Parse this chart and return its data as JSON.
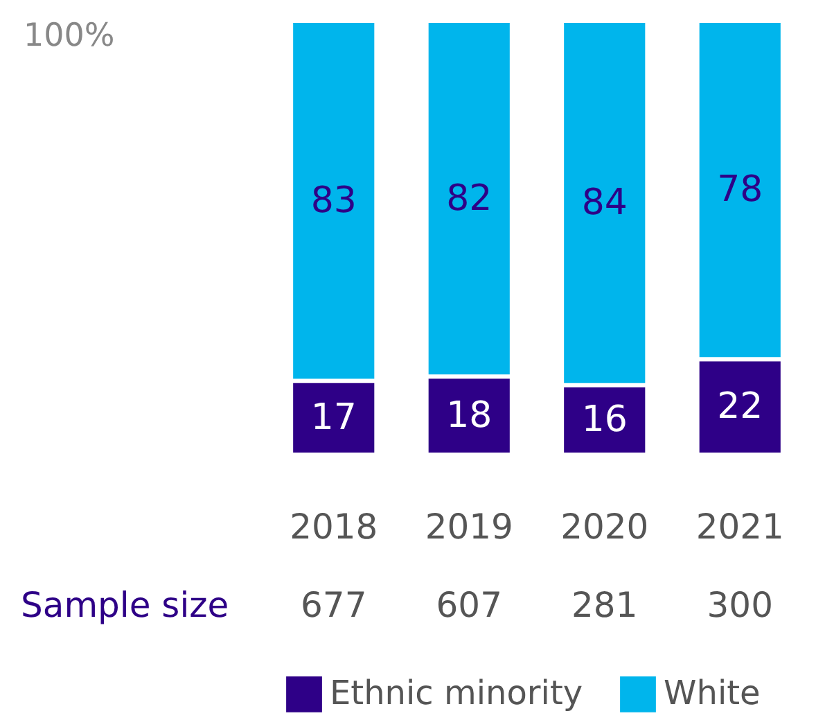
{
  "chart_data": {
    "type": "bar",
    "stacked": true,
    "data_labels": true,
    "legend": "bottom",
    "categories": [
      "2018",
      "2019",
      "2020",
      "2021"
    ],
    "series": [
      {
        "name": "Ethnic minority",
        "color": "#2e0087",
        "values": [
          17,
          18,
          16,
          22
        ]
      },
      {
        "name": "White",
        "color": "#00b5ec",
        "values": [
          83,
          82,
          84,
          78
        ]
      }
    ],
    "ylim": [
      0,
      100
    ],
    "annotations": [
      "100%",
      "Sample size",
      "677",
      "607",
      "281",
      "300"
    ]
  }
}
